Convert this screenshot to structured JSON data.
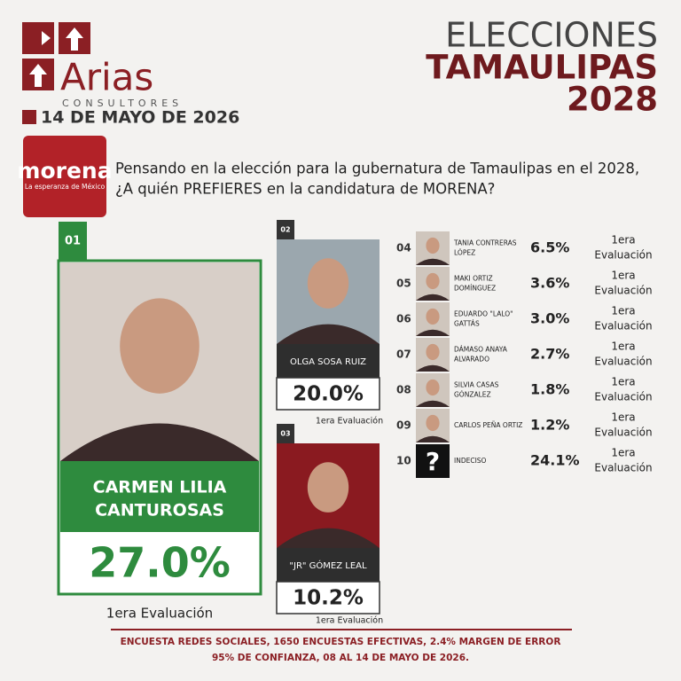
{
  "header": {
    "logo_name": "Arias",
    "logo_sub": "CONSULTORES",
    "date": "14 DE MAYO DE 2026",
    "title_lines": [
      "ELECCIONES",
      "TAMAULIPAS",
      "2028"
    ]
  },
  "party": {
    "name": "morena",
    "slogan": "La esperanza de México"
  },
  "question": {
    "lines": [
      "Pensando en la elección para la gubernatura de Tamaulipas en el 2028,",
      "¿A quién PREFIERES en la candidatura de MORENA?"
    ]
  },
  "candidates": [
    {
      "rank": "01",
      "name_lines": [
        "CARMEN LILIA",
        "CANTUROSAS"
      ],
      "value": "27.0%",
      "note_lines": [
        "1era Evaluación"
      ]
    },
    {
      "rank": "02",
      "name_lines": [
        "OLGA SOSA RUIZ"
      ],
      "value": "20.0%",
      "note_lines": [
        "1era Evaluación"
      ]
    },
    {
      "rank": "03",
      "name_lines": [
        "\"JR\" GÓMEZ LEAL"
      ],
      "value": "10.2%",
      "note_lines": [
        "1era Evaluación"
      ]
    },
    {
      "rank": "04",
      "name_lines": [
        "TANIA CONTRERAS",
        "LÓPEZ"
      ],
      "value": "6.5%",
      "note_lines": [
        "1era",
        "Evaluación"
      ]
    },
    {
      "rank": "05",
      "name_lines": [
        "MAKI ORTIZ",
        "DOMÍNGUEZ"
      ],
      "value": "3.6%",
      "note_lines": [
        "1era",
        "Evaluación"
      ]
    },
    {
      "rank": "06",
      "name_lines": [
        "EDUARDO \"LALO\"",
        "GATTÁS"
      ],
      "value": "3.0%",
      "note_lines": [
        "1era",
        "Evaluación"
      ]
    },
    {
      "rank": "07",
      "name_lines": [
        "DÁMASO ANAYA",
        "ALVARADO"
      ],
      "value": "2.7%",
      "note_lines": [
        "1era",
        "Evaluación"
      ]
    },
    {
      "rank": "08",
      "name_lines": [
        "SILVIA CASAS",
        "GÓNZALEZ"
      ],
      "value": "1.8%",
      "note_lines": [
        "1era",
        "Evaluación"
      ]
    },
    {
      "rank": "09",
      "name_lines": [
        "CARLOS PEÑA ORTIZ"
      ],
      "value": "1.2%",
      "note_lines": [
        "1era",
        "Evaluación"
      ]
    },
    {
      "rank": "10",
      "name_lines": [
        "INDECISO"
      ],
      "value": "24.1%",
      "note_lines": [
        "1era",
        "Evaluación"
      ]
    }
  ],
  "footer": {
    "lines": [
      "ENCUESTA REDES SOCIALES, 1650 ENCUESTAS EFECTIVAS, 2.4%  MARGEN DE ERROR",
      "95% DE CONFIANZA, 08 AL 14 DE MAYO DE 2026."
    ]
  }
}
